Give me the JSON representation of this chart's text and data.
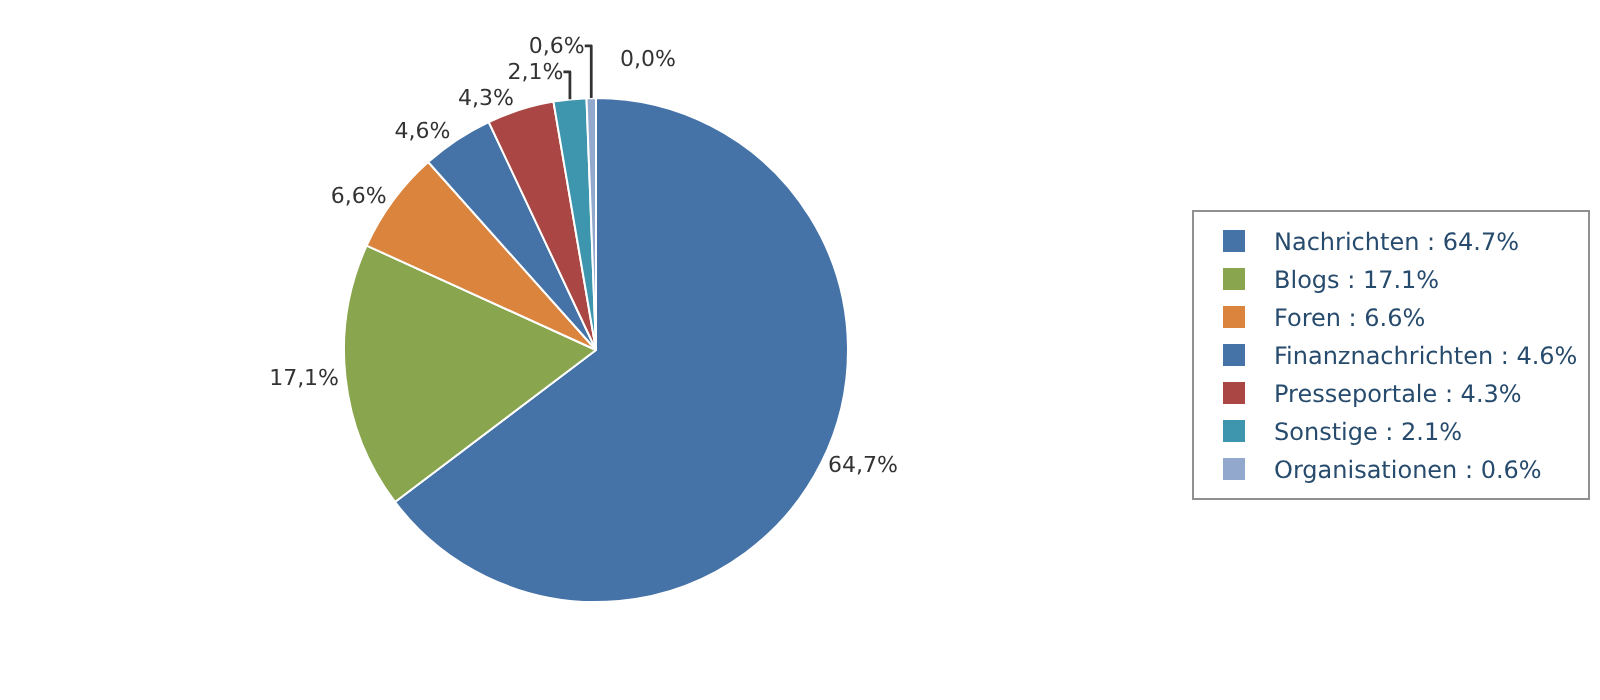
{
  "chart_data": {
    "type": "pie",
    "categories": [
      "Nachrichten : 64.7%",
      "Blogs : 17.1%",
      "Foren : 6.6%",
      "Finanznachrichten : 4.6%",
      "Presseportale : 4.3%",
      "Sonstige : 2.1%",
      "Organisationen : 0.6%"
    ],
    "values": [
      64.7,
      17.1,
      6.6,
      4.6,
      4.3,
      2.1,
      0.6
    ],
    "colors": [
      "#4572a7",
      "#89a54e",
      "#db843d",
      "#4572a7",
      "#aa4643",
      "#3d96ae",
      "#92a8cd"
    ],
    "value_labels": [
      "64,7%",
      "17,1%",
      "6,6%",
      "4,6%",
      "4,3%",
      "2,1%",
      "0,6%"
    ],
    "annotations": [
      "0,0%"
    ],
    "legend": "right"
  }
}
